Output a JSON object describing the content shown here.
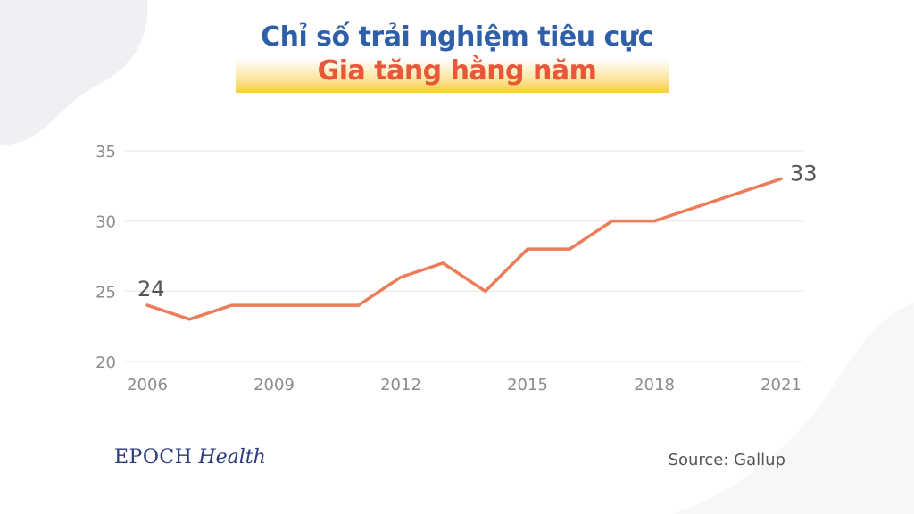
{
  "header": {
    "title_line1": "Chỉ số trải nghiệm tiêu cực",
    "title_line2": "Gia tăng hằng năm"
  },
  "colors": {
    "title1": "#2f5fa8",
    "title2": "#e8573a",
    "line": "#ec7d5a",
    "grid": "#e6e6e6",
    "tick": "#8c8c8c",
    "label": "#555555"
  },
  "chart_data": {
    "type": "line",
    "x": [
      2006,
      2007,
      2008,
      2009,
      2010,
      2011,
      2012,
      2013,
      2014,
      2015,
      2016,
      2017,
      2018,
      2019,
      2020,
      2021
    ],
    "series": [
      {
        "values": [
          24,
          23,
          24,
          24,
          24,
          24,
          26,
          27,
          25,
          28,
          28,
          30,
          30,
          31,
          32,
          33
        ]
      }
    ],
    "x_ticks": [
      2006,
      2009,
      2012,
      2015,
      2018,
      2021
    ],
    "y_ticks": [
      20,
      25,
      30,
      35
    ],
    "ylim": [
      20,
      35
    ],
    "xlim": [
      2006,
      2021
    ],
    "grid": "horizontal",
    "annotations": [
      {
        "x": 2006,
        "y": 24,
        "text": "24"
      },
      {
        "x": 2021,
        "y": 33,
        "text": "33"
      }
    ]
  },
  "footer": {
    "brand_part1": "EPOCH",
    "brand_part2": "Health",
    "source": "Source: Gallup"
  }
}
